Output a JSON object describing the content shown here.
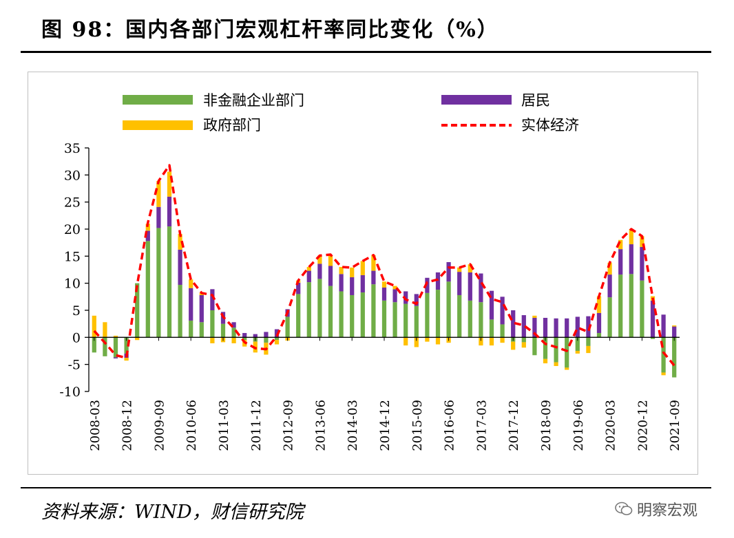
{
  "figure": {
    "title": "图 98：国内各部门宏观杠杆率同比变化（%）",
    "source": "资料来源：WIND，财信研究院",
    "watermark": "明察宏观"
  },
  "colors": {
    "nonfinancial": "#70AD47",
    "household": "#7030A0",
    "government": "#FFC000",
    "real_economy": "#FF0000"
  },
  "chart_data": {
    "type": "bar",
    "stacked": true,
    "ylim": [
      -10,
      35
    ],
    "yticks": [
      -10,
      -5,
      0,
      5,
      10,
      15,
      20,
      25,
      30,
      35
    ],
    "xtick_labels": [
      "2008-03",
      "2008-12",
      "2009-09",
      "2010-06",
      "2011-03",
      "2011-12",
      "2012-09",
      "2013-06",
      "2014-03",
      "2014-12",
      "2015-09",
      "2016-06",
      "2017-03",
      "2017-12",
      "2018-09",
      "2019-06",
      "2020-03",
      "2020-12",
      "2021-09"
    ],
    "legend_position": "top",
    "x": [
      "2008-03",
      "2008-06",
      "2008-09",
      "2008-12",
      "2009-03",
      "2009-06",
      "2009-09",
      "2009-12",
      "2010-03",
      "2010-06",
      "2010-09",
      "2010-12",
      "2011-03",
      "2011-06",
      "2011-09",
      "2011-12",
      "2012-03",
      "2012-06",
      "2012-09",
      "2012-12",
      "2013-03",
      "2013-06",
      "2013-09",
      "2013-12",
      "2014-03",
      "2014-06",
      "2014-09",
      "2014-12",
      "2015-03",
      "2015-06",
      "2015-09",
      "2015-12",
      "2016-03",
      "2016-06",
      "2016-09",
      "2016-12",
      "2017-03",
      "2017-06",
      "2017-09",
      "2017-12",
      "2018-03",
      "2018-06",
      "2018-09",
      "2018-12",
      "2019-03",
      "2019-06",
      "2019-09",
      "2019-12",
      "2020-03",
      "2020-06",
      "2020-09",
      "2020-12",
      "2021-03",
      "2021-06",
      "2021-09"
    ],
    "series": [
      {
        "name": "非金融企业部门",
        "type": "bar",
        "values": [
          -2.8,
          -3.5,
          -3.7,
          -3.0,
          10.0,
          17.8,
          20.2,
          20.5,
          9.7,
          3.1,
          2.8,
          5.0,
          2.5,
          1.8,
          -0.5,
          -0.8,
          -1.0,
          -0.5,
          3.8,
          8.0,
          10.2,
          10.8,
          9.5,
          8.5,
          7.8,
          8.3,
          9.8,
          6.8,
          6.5,
          6.2,
          5.8,
          8.2,
          8.8,
          10.3,
          7.8,
          6.8,
          6.5,
          3.3,
          2.4,
          -0.8,
          -0.9,
          -3.3,
          -4.0,
          -4.6,
          -5.6,
          -2.5,
          -1.6,
          0.8,
          7.4,
          11.6,
          11.7,
          10.5,
          -0.3,
          -6.5,
          -7.4
        ]
      },
      {
        "name": "居民",
        "type": "bar",
        "values": [
          0.0,
          0.0,
          -0.2,
          -0.8,
          0.0,
          1.9,
          3.9,
          5.5,
          6.5,
          6.0,
          5.0,
          3.9,
          2.2,
          1.0,
          0.8,
          0.6,
          1.0,
          1.5,
          1.4,
          2.1,
          2.1,
          2.8,
          3.7,
          3.2,
          3.3,
          3.2,
          2.5,
          2.4,
          2.4,
          2.3,
          2.2,
          2.8,
          3.2,
          3.6,
          4.3,
          5.2,
          5.3,
          5.3,
          5.1,
          5.0,
          4.1,
          3.6,
          3.6,
          3.5,
          3.5,
          3.8,
          3.9,
          3.7,
          4.2,
          4.7,
          5.5,
          6.2,
          6.8,
          4.2,
          2.0
        ]
      },
      {
        "name": "政府部门",
        "type": "bar",
        "values": [
          4.0,
          2.8,
          0.3,
          -0.5,
          -0.5,
          1.3,
          4.8,
          4.6,
          2.9,
          1.6,
          0.4,
          -1.1,
          -0.9,
          -1.1,
          -1.2,
          -2.0,
          -2.2,
          -0.8,
          -0.6,
          0.4,
          0.7,
          1.5,
          1.9,
          1.3,
          1.8,
          2.6,
          2.9,
          1.1,
          0.6,
          -1.5,
          -1.8,
          -0.8,
          -1.3,
          -1.0,
          0.8,
          1.5,
          -1.5,
          -1.5,
          -1.0,
          -1.5,
          -1.0,
          0.4,
          -0.8,
          -0.7,
          -0.4,
          -0.5,
          -1.3,
          3.1,
          2.2,
          1.7,
          2.8,
          2.0,
          0.8,
          -0.5,
          0.2
        ]
      },
      {
        "name": "实体经济",
        "type": "line",
        "values": [
          1.2,
          -1.0,
          -3.3,
          -3.8,
          9.7,
          21.2,
          28.9,
          31.8,
          19.1,
          10.7,
          8.2,
          7.8,
          3.8,
          1.7,
          -0.9,
          -2.0,
          -2.2,
          0.2,
          4.6,
          10.5,
          13.0,
          15.1,
          15.3,
          13.0,
          12.9,
          14.1,
          15.2,
          10.3,
          9.5,
          7.0,
          6.2,
          10.2,
          10.7,
          12.9,
          12.9,
          13.5,
          10.3,
          7.1,
          6.5,
          2.7,
          2.2,
          0.7,
          -1.2,
          -1.8,
          -2.5,
          1.8,
          1.0,
          7.6,
          13.8,
          18.0,
          20.0,
          18.7,
          7.3,
          -2.8,
          -5.2
        ]
      }
    ]
  }
}
